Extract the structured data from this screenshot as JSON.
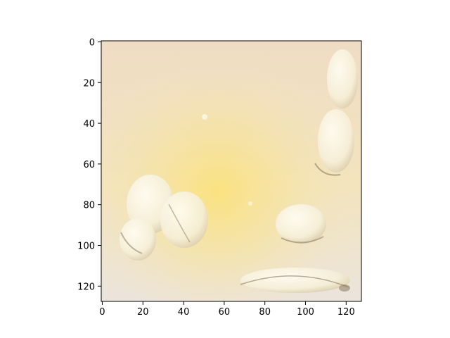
{
  "chart_data": {
    "type": "heatmap",
    "title": "",
    "xlabel": "",
    "ylabel": "",
    "image_size": [
      128,
      128
    ],
    "xlim": [
      -0.5,
      127.5
    ],
    "ylim": [
      127.5,
      -0.5
    ],
    "x_ticks": [
      0,
      20,
      40,
      60,
      80,
      100,
      120
    ],
    "y_ticks": [
      0,
      20,
      40,
      60,
      80,
      100,
      120
    ],
    "grid": false,
    "colors": {
      "background": "#ffffff",
      "axes_edge": "#000000",
      "image_base": "#f2e4c6",
      "glow": "#fbe27c",
      "cloud": "#fbf7e8",
      "shadow": "#8a7a5c"
    }
  }
}
